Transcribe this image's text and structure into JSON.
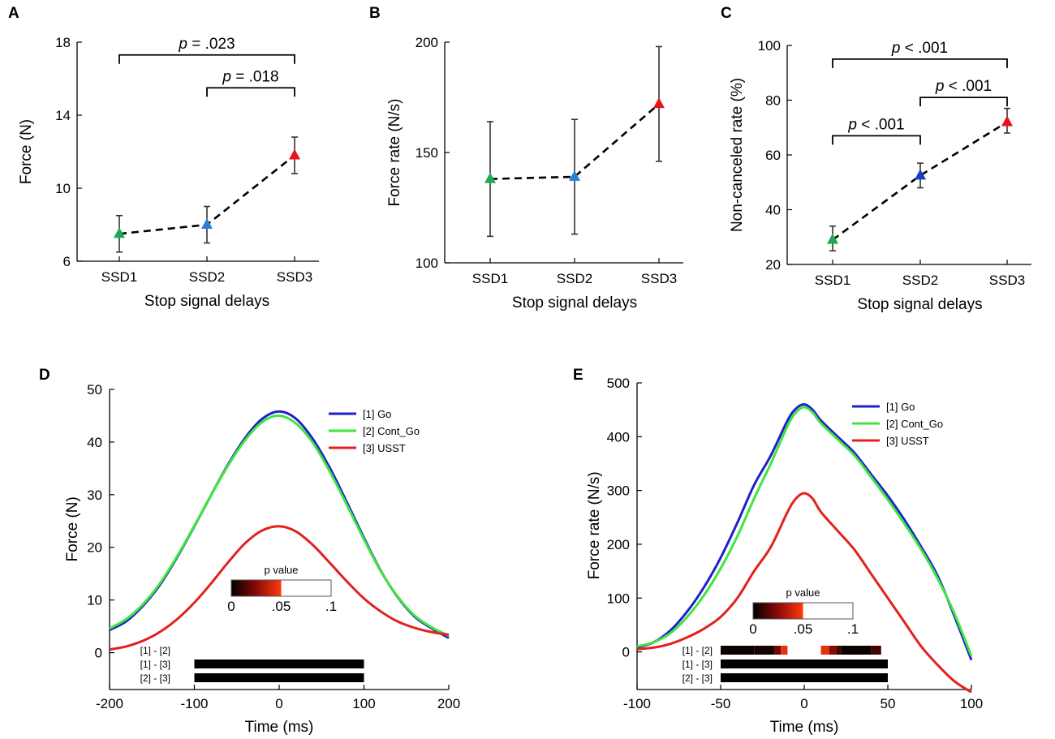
{
  "colors": {
    "green": "#1daa55",
    "blue": "#2a7fd0",
    "blue_dark": "#1a3fbf",
    "red": "#e8141c",
    "go": "#1f1fcc",
    "cont_go": "#3ee63e",
    "usst": "#e3211c",
    "black": "#000000"
  },
  "panels": {
    "A": {
      "letter": "A"
    },
    "B": {
      "letter": "B"
    },
    "C": {
      "letter": "C"
    },
    "D": {
      "letter": "D"
    },
    "E": {
      "letter": "E"
    }
  },
  "chart_data": [
    {
      "id": "A",
      "type": "scatter",
      "title": "",
      "xlabel": "Stop signal delays",
      "ylabel": "Force (N)",
      "categories": [
        "SSD1",
        "SSD2",
        "SSD3"
      ],
      "values": [
        7.5,
        8.0,
        11.8
      ],
      "err_low": [
        6.5,
        7.0,
        10.8
      ],
      "err_high": [
        8.5,
        9.0,
        12.8
      ],
      "marker_colors": [
        "green",
        "blue",
        "red"
      ],
      "ylim": [
        6,
        18
      ],
      "yticks": [
        6,
        10,
        14,
        18
      ],
      "significance": [
        {
          "from": 0,
          "to": 2,
          "label": "p = .023",
          "p_letter": "p",
          "p_rest": " = .023",
          "y": 17.3
        },
        {
          "from": 1,
          "to": 2,
          "label": "p = .018",
          "p_letter": "p",
          "p_rest": " = .018",
          "y": 15.5
        }
      ]
    },
    {
      "id": "B",
      "type": "scatter",
      "title": "",
      "xlabel": "Stop signal delays",
      "ylabel": "Force rate (N/s)",
      "categories": [
        "SSD1",
        "SSD2",
        "SSD3"
      ],
      "values": [
        138,
        139,
        172
      ],
      "err_low": [
        112,
        113,
        146
      ],
      "err_high": [
        164,
        165,
        198
      ],
      "marker_colors": [
        "green",
        "blue",
        "red"
      ],
      "ylim": [
        100,
        200
      ],
      "yticks": [
        100,
        150,
        200
      ],
      "significance": []
    },
    {
      "id": "C",
      "type": "scatter",
      "title": "",
      "xlabel": "Stop signal delays",
      "ylabel": "Non-canceled rate (%)",
      "categories": [
        "SSD1",
        "SSD2",
        "SSD3"
      ],
      "values": [
        29,
        52.5,
        72
      ],
      "err_low": [
        25,
        48,
        68
      ],
      "err_high": [
        34,
        57,
        77
      ],
      "marker_colors": [
        "green",
        "blue_dark",
        "red"
      ],
      "ylim": [
        20,
        100
      ],
      "yticks": [
        20,
        40,
        60,
        80,
        100
      ],
      "significance": [
        {
          "from": 0,
          "to": 2,
          "label": "p < .001",
          "p_letter": "p",
          "p_rest": " < .001",
          "y": 95
        },
        {
          "from": 1,
          "to": 2,
          "label": "p < .001",
          "p_letter": "p",
          "p_rest": " < .001",
          "y": 81
        },
        {
          "from": 0,
          "to": 1,
          "label": "p < .001",
          "p_letter": "p",
          "p_rest": " < .001",
          "y": 67
        }
      ]
    },
    {
      "id": "D",
      "type": "line",
      "title": "",
      "xlabel": "Time (ms)",
      "ylabel": "Force (N)",
      "xlim": [
        -200,
        200
      ],
      "xticks": [
        -200,
        -100,
        0,
        100,
        200
      ],
      "ylim": [
        -7,
        50
      ],
      "yticks": [
        0,
        10,
        20,
        30,
        40,
        50
      ],
      "series": [
        {
          "name": "[1] Go",
          "color": "go",
          "x": [
            -200,
            -180,
            -160,
            -140,
            -120,
            -100,
            -80,
            -60,
            -40,
            -20,
            0,
            20,
            40,
            60,
            80,
            100,
            120,
            140,
            160,
            180,
            200
          ],
          "y": [
            4.3,
            6.0,
            9.0,
            13.0,
            18.2,
            24.0,
            30.0,
            35.8,
            40.8,
            44.4,
            45.8,
            44.4,
            40.5,
            35.0,
            28.5,
            21.8,
            15.5,
            10.5,
            6.8,
            4.6,
            2.8
          ]
        },
        {
          "name": "[2] Cont_Go",
          "color": "cont_go",
          "x": [
            -200,
            -180,
            -160,
            -140,
            -120,
            -100,
            -80,
            -60,
            -40,
            -20,
            0,
            20,
            40,
            60,
            80,
            100,
            120,
            140,
            160,
            180,
            200
          ],
          "y": [
            4.6,
            6.4,
            9.3,
            13.3,
            18.4,
            24.1,
            30.0,
            35.6,
            40.4,
            43.8,
            45.0,
            43.5,
            39.8,
            34.3,
            28.0,
            21.5,
            15.4,
            10.6,
            7.0,
            4.8,
            3.2
          ]
        },
        {
          "name": "[3] USST",
          "color": "usst",
          "x": [
            -200,
            -180,
            -160,
            -140,
            -120,
            -100,
            -80,
            -60,
            -40,
            -20,
            0,
            20,
            40,
            60,
            80,
            100,
            120,
            140,
            160,
            180,
            200
          ],
          "y": [
            0.6,
            1.2,
            2.3,
            4.0,
            6.4,
            9.5,
            13.2,
            17.2,
            20.8,
            23.2,
            24.0,
            23.0,
            20.4,
            17.0,
            13.5,
            10.3,
            7.8,
            5.9,
            4.7,
            3.9,
            3.4
          ]
        }
      ],
      "legend": [
        "[1] Go",
        "[2] Cont_Go",
        "[3] USST"
      ],
      "colorbar": {
        "title": "p value",
        "ticks": [
          "0",
          ".05",
          ".1"
        ],
        "tick_values": [
          0,
          0.05,
          0.1
        ]
      },
      "sig_rows": [
        {
          "label": "[1] - [2]",
          "segments": []
        },
        {
          "label": "[1] - [3]",
          "segments": [
            {
              "start": -100,
              "end": 100,
              "p": 0.0001
            }
          ]
        },
        {
          "label": "[2] - [3]",
          "segments": [
            {
              "start": -100,
              "end": 100,
              "p": 0.0001
            }
          ]
        }
      ]
    },
    {
      "id": "E",
      "type": "line",
      "title": "",
      "xlabel": "Time (ms)",
      "ylabel": "Force rate (N/s)",
      "xlim": [
        -100,
        100
      ],
      "xticks": [
        -100,
        -50,
        0,
        50,
        100
      ],
      "ylim": [
        -70,
        500
      ],
      "yticks": [
        0,
        100,
        200,
        300,
        400,
        500
      ],
      "series": [
        {
          "name": "[1] Go",
          "color": "go",
          "x": [
            -100,
            -90,
            -80,
            -70,
            -60,
            -50,
            -40,
            -30,
            -20,
            -10,
            -5,
            0,
            5,
            10,
            20,
            30,
            40,
            50,
            60,
            70,
            80,
            90,
            100
          ],
          "y": [
            8,
            18,
            40,
            75,
            120,
            175,
            240,
            310,
            365,
            430,
            452,
            460,
            450,
            430,
            400,
            370,
            330,
            290,
            245,
            195,
            140,
            65,
            -15
          ]
        },
        {
          "name": "[2] Cont_Go",
          "color": "cont_go",
          "x": [
            -100,
            -90,
            -80,
            -70,
            -60,
            -50,
            -40,
            -30,
            -20,
            -10,
            -5,
            0,
            5,
            10,
            20,
            30,
            40,
            50,
            60,
            70,
            80,
            90,
            100
          ],
          "y": [
            10,
            18,
            35,
            65,
            105,
            155,
            215,
            285,
            350,
            420,
            445,
            455,
            445,
            425,
            395,
            365,
            325,
            283,
            238,
            190,
            135,
            70,
            -8
          ]
        },
        {
          "name": "[3] USST",
          "color": "usst",
          "x": [
            -100,
            -90,
            -80,
            -70,
            -60,
            -50,
            -40,
            -30,
            -20,
            -10,
            -5,
            0,
            5,
            10,
            20,
            30,
            40,
            50,
            60,
            70,
            80,
            90,
            100
          ],
          "y": [
            5,
            8,
            15,
            27,
            43,
            65,
            100,
            150,
            195,
            260,
            285,
            295,
            285,
            260,
            225,
            190,
            145,
            100,
            55,
            10,
            -25,
            -55,
            -75
          ]
        }
      ],
      "legend": [
        "[1] Go",
        "[2] Cont_Go",
        "[3] USST"
      ],
      "colorbar": {
        "title": "p value",
        "ticks": [
          "0",
          ".05",
          ".1"
        ],
        "tick_values": [
          0,
          0.05,
          0.1
        ]
      },
      "sig_rows": [
        {
          "label": "[1] - [2]",
          "segments": [
            {
              "start": -50,
              "end": -30,
              "p": 0.002
            },
            {
              "start": -30,
              "end": -18,
              "p": 0.004
            },
            {
              "start": -18,
              "end": -14,
              "p": 0.02
            },
            {
              "start": -14,
              "end": -10,
              "p": 0.045
            },
            {
              "start": 10,
              "end": 15,
              "p": 0.045
            },
            {
              "start": 15,
              "end": 19,
              "p": 0.025
            },
            {
              "start": 19,
              "end": 22,
              "p": 0.012
            },
            {
              "start": 22,
              "end": 40,
              "p": 0.002
            },
            {
              "start": 40,
              "end": 46,
              "p": 0.012
            }
          ]
        },
        {
          "label": "[1] - [3]",
          "segments": [
            {
              "start": -50,
              "end": 50,
              "p": 0.0001
            }
          ]
        },
        {
          "label": "[2] - [3]",
          "segments": [
            {
              "start": -50,
              "end": 50,
              "p": 0.0001
            }
          ]
        }
      ]
    }
  ]
}
